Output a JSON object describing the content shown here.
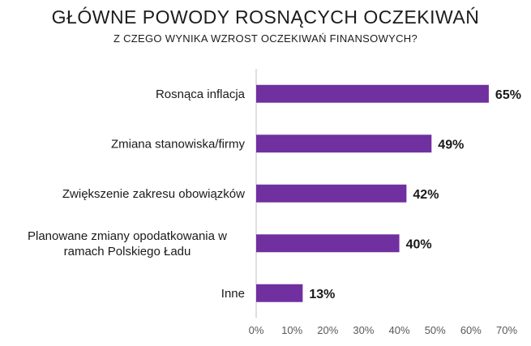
{
  "chart_data": {
    "type": "bar",
    "orientation": "horizontal",
    "title": "GŁÓWNE POWODY ROSNĄCYCH OCZEKIWAŃ",
    "subtitle": "Z CZEGO WYNIKA WZROST OCZEKIWAŃ FINANSOWYCH?",
    "categories": [
      [
        "Rosnąca inflacja"
      ],
      [
        "Zmiana stanowiska/firmy"
      ],
      [
        "Zwiększenie zakresu obowiązków"
      ],
      [
        "Planowane zmiany opodatkowania w",
        "ramach Polskiego Ładu"
      ],
      [
        "Inne"
      ]
    ],
    "values": [
      65,
      49,
      42,
      40,
      13
    ],
    "value_labels": [
      "65%",
      "49%",
      "42%",
      "40%",
      "13%"
    ],
    "xlim": [
      0,
      70
    ],
    "ticks": [
      0,
      10,
      20,
      30,
      40,
      50,
      60,
      70
    ],
    "tick_labels": [
      "0%",
      "10%",
      "20%",
      "30%",
      "40%",
      "50%",
      "60%",
      "70%"
    ],
    "bar_color": "#7030a0",
    "axis_color": "#bfbfbf",
    "grid": false,
    "legend": "none"
  }
}
